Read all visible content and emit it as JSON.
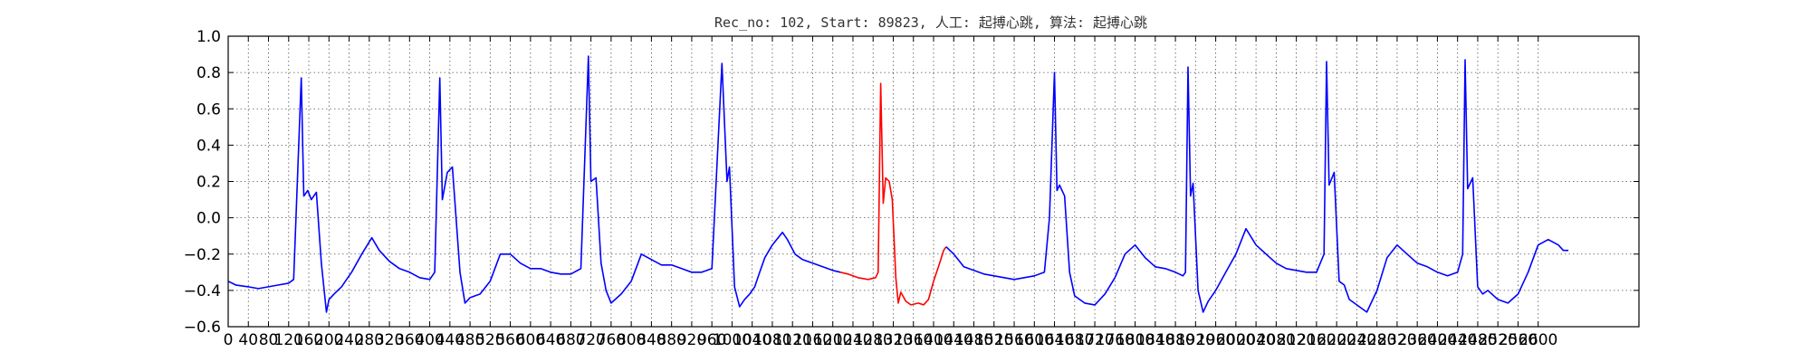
{
  "chart_data": {
    "type": "line",
    "title": "Rec_no: 102, Start: 89823, 人工: 起搏心跳, 算法: 起搏心跳",
    "xlabel": "",
    "ylabel": "",
    "xlim": [
      0,
      2800
    ],
    "ylim": [
      -0.6,
      1.0
    ],
    "grid": true,
    "grid_style": "dotted",
    "y_ticks": [
      "1.0",
      "0.8",
      "0.6",
      "0.4",
      "0.2",
      "0.0",
      "−0.2",
      "−0.4",
      "−0.6"
    ],
    "x_tick_values": [
      0,
      40,
      80,
      120,
      160,
      200,
      240,
      280,
      320,
      360,
      400,
      440,
      480,
      520,
      560,
      600,
      640,
      680,
      720,
      760,
      800,
      840,
      880,
      920,
      960,
      1000,
      1040,
      1080,
      1120,
      1160,
      1200,
      1240,
      1280,
      1320,
      1360,
      1400,
      1440,
      1480,
      1520,
      1560,
      1600,
      1640,
      1680,
      1720,
      1760,
      1800,
      1840,
      1880,
      1920,
      1960,
      2000,
      2040,
      2080,
      2120,
      2160,
      2200,
      2240,
      2280,
      2320,
      2360,
      2400,
      2440,
      2480,
      2520,
      2560,
      2600
    ],
    "series": [
      {
        "color": "#0000ff",
        "x": [
          0,
          15,
          40,
          60,
          80,
          100,
          120,
          130,
          145,
          150,
          158,
          165,
          175,
          185,
          195,
          200,
          210,
          225,
          245,
          265,
          285,
          300,
          320,
          340,
          360,
          380,
          400,
          410,
          420,
          425,
          435,
          445,
          460,
          470,
          480,
          500,
          520,
          540,
          560,
          580,
          600,
          620,
          640,
          660,
          680,
          700,
          715,
          720,
          730,
          740,
          750,
          760,
          780,
          800,
          820,
          840,
          860,
          880,
          900,
          920,
          940,
          960,
          980,
          990,
          995,
          1005,
          1015,
          1025,
          1035,
          1045,
          1055,
          1065,
          1080,
          1100,
          1110,
          1125,
          1140,
          1160,
          1180,
          1200,
          1215
        ],
        "y": [
          -0.35,
          -0.37,
          -0.38,
          -0.39,
          -0.38,
          -0.37,
          -0.36,
          -0.34,
          0.77,
          0.12,
          0.15,
          0.1,
          0.14,
          -0.25,
          -0.52,
          -0.45,
          -0.42,
          -0.38,
          -0.3,
          -0.2,
          -0.11,
          -0.18,
          -0.24,
          -0.28,
          -0.3,
          -0.33,
          -0.34,
          -0.3,
          0.77,
          0.1,
          0.25,
          0.28,
          -0.3,
          -0.47,
          -0.44,
          -0.42,
          -0.35,
          -0.2,
          -0.2,
          -0.25,
          -0.28,
          -0.28,
          -0.3,
          -0.31,
          -0.31,
          -0.28,
          0.89,
          0.2,
          0.22,
          -0.25,
          -0.4,
          -0.47,
          -0.42,
          -0.35,
          -0.2,
          -0.23,
          -0.26,
          -0.26,
          -0.28,
          -0.3,
          -0.3,
          -0.28,
          0.85,
          0.2,
          0.28,
          -0.38,
          -0.49,
          -0.45,
          -0.42,
          -0.38,
          -0.3,
          -0.22,
          -0.15,
          -0.08,
          -0.12,
          -0.2,
          -0.23,
          -0.25,
          -0.27,
          -0.29,
          -0.3
        ]
      },
      {
        "color": "#ff0000",
        "x": [
          1215,
          1230,
          1250,
          1270,
          1285,
          1290,
          1295,
          1300,
          1305,
          1312,
          1318,
          1325,
          1330,
          1335,
          1345,
          1355,
          1370,
          1380,
          1390,
          1400,
          1412,
          1420,
          1425
        ],
        "y": [
          -0.3,
          -0.31,
          -0.33,
          -0.34,
          -0.33,
          -0.3,
          0.74,
          0.08,
          0.22,
          0.2,
          0.1,
          -0.33,
          -0.47,
          -0.41,
          -0.46,
          -0.48,
          -0.47,
          -0.48,
          -0.45,
          -0.35,
          -0.25,
          -0.18,
          -0.16
        ]
      },
      {
        "color": "#0000ff",
        "x": [
          1425,
          1440,
          1460,
          1480,
          1500,
          1520,
          1540,
          1560,
          1580,
          1600,
          1620,
          1630,
          1640,
          1645,
          1650,
          1660,
          1670,
          1680,
          1700,
          1720,
          1740,
          1760,
          1780,
          1800,
          1820,
          1840,
          1860,
          1880,
          1895,
          1900,
          1905,
          1910,
          1915,
          1925,
          1935,
          1945,
          1960,
          1980,
          2000,
          2020,
          2040,
          2060,
          2080,
          2100,
          2120,
          2140,
          2160,
          2175,
          2180,
          2185,
          2195,
          2205,
          2215,
          2225,
          2240,
          2260,
          2280,
          2300,
          2320,
          2340,
          2360,
          2380,
          2400,
          2420,
          2440,
          2450,
          2455,
          2460,
          2470,
          2480,
          2490,
          2500,
          2520,
          2540,
          2560,
          2580,
          2600,
          2620,
          2640,
          2650,
          2660
        ],
        "y": [
          -0.16,
          -0.2,
          -0.27,
          -0.29,
          -0.31,
          -0.32,
          -0.33,
          -0.34,
          -0.33,
          -0.32,
          -0.3,
          0.0,
          0.8,
          0.15,
          0.18,
          0.12,
          -0.3,
          -0.43,
          -0.47,
          -0.48,
          -0.42,
          -0.33,
          -0.2,
          -0.15,
          -0.22,
          -0.27,
          -0.28,
          -0.3,
          -0.32,
          -0.3,
          0.83,
          0.12,
          0.19,
          -0.4,
          -0.52,
          -0.46,
          -0.4,
          -0.3,
          -0.2,
          -0.06,
          -0.15,
          -0.2,
          -0.25,
          -0.28,
          -0.29,
          -0.3,
          -0.3,
          -0.2,
          0.86,
          0.18,
          0.25,
          -0.35,
          -0.37,
          -0.45,
          -0.48,
          -0.52,
          -0.4,
          -0.22,
          -0.15,
          -0.2,
          -0.25,
          -0.27,
          -0.3,
          -0.32,
          -0.3,
          -0.2,
          0.87,
          0.16,
          0.22,
          -0.38,
          -0.42,
          -0.4,
          -0.45,
          -0.47,
          -0.42,
          -0.3,
          -0.15,
          -0.12,
          -0.15,
          -0.18,
          -0.18
        ]
      }
    ]
  }
}
